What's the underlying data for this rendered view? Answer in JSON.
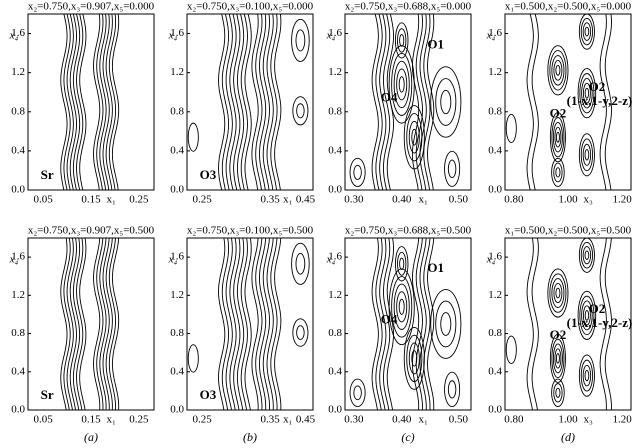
{
  "panels": [
    {
      "header": "x₂=0.750,x₃=0.907,x₅=0.000",
      "ylabel": "x₄",
      "yticks": [
        "0.0",
        "0.4",
        "0.8",
        "1.2",
        "1.6"
      ],
      "xticks": [
        "0.05",
        "0.15",
        "x₁",
        "0.25"
      ],
      "labels": [
        "Sr"
      ]
    },
    {
      "header": "x₂=0.750,x₃=0.100,x₅=0.000",
      "ylabel": "x₄",
      "yticks": [
        "0.0",
        "0.4",
        "0.8",
        "1.2",
        "1.6"
      ],
      "xticks": [
        "0.25",
        "0.35",
        "x₁",
        "0.45"
      ],
      "labels": [
        "O3"
      ]
    },
    {
      "header": "x₂=0.750,x₃=0.688,x₅=0.000",
      "ylabel": "x₄",
      "yticks": [
        "0.0",
        "0.4",
        "0.8",
        "1.2",
        "1.6"
      ],
      "xticks": [
        "0.30",
        "0.40",
        "x₁",
        "0.50"
      ],
      "labels": [
        "O1",
        "O4"
      ]
    },
    {
      "header": "x₁=0.500,x₂=0.500,x₅=0.000",
      "ylabel": "x₄",
      "yticks": [
        "0.0",
        "0.4",
        "0.8",
        "1.2",
        "1.6"
      ],
      "xticks": [
        "0.80",
        "1.00",
        "x₃",
        "1.20"
      ],
      "labels": [
        "O2",
        "(1-x,1-y,2-z)",
        "O2"
      ]
    },
    {
      "header": "x₂=0.750,x₃=0.907,x₅=0.500",
      "ylabel": "x₄",
      "yticks": [
        "0.0",
        "0.4",
        "0.8",
        "1.2",
        "1.6"
      ],
      "xticks": [
        "0.05",
        "0.15",
        "x₁",
        "0.25"
      ],
      "labels": [
        "Sr"
      ]
    },
    {
      "header": "x₂=0.750,x₃=0.100,x₅=0.500",
      "ylabel": "x₄",
      "yticks": [
        "0.0",
        "0.4",
        "0.8",
        "1.2",
        "1.6"
      ],
      "xticks": [
        "0.25",
        "0.35",
        "x₁",
        "0.45"
      ],
      "labels": [
        "O3"
      ]
    },
    {
      "header": "x₂=0.750,x₃=0.688,x₅=0.500",
      "ylabel": "x₄",
      "yticks": [
        "0.0",
        "0.4",
        "0.8",
        "1.2",
        "1.6"
      ],
      "xticks": [
        "0.30",
        "0.40",
        "x₁",
        "0.50"
      ],
      "labels": [
        "O1",
        "O4"
      ]
    },
    {
      "header": "x₁=0.500,x₂=0.500,x₅=0.500",
      "ylabel": "x₄",
      "yticks": [
        "0.0",
        "0.4",
        "0.8",
        "1.2",
        "1.6"
      ],
      "xticks": [
        "0.80",
        "1.00",
        "x₃",
        "1.20"
      ],
      "labels": [
        "O2",
        "(1-x,1-y,2-z)",
        "O2"
      ]
    }
  ],
  "captions": [
    "(a)",
    "(b)",
    "(c)",
    "(d)"
  ]
}
